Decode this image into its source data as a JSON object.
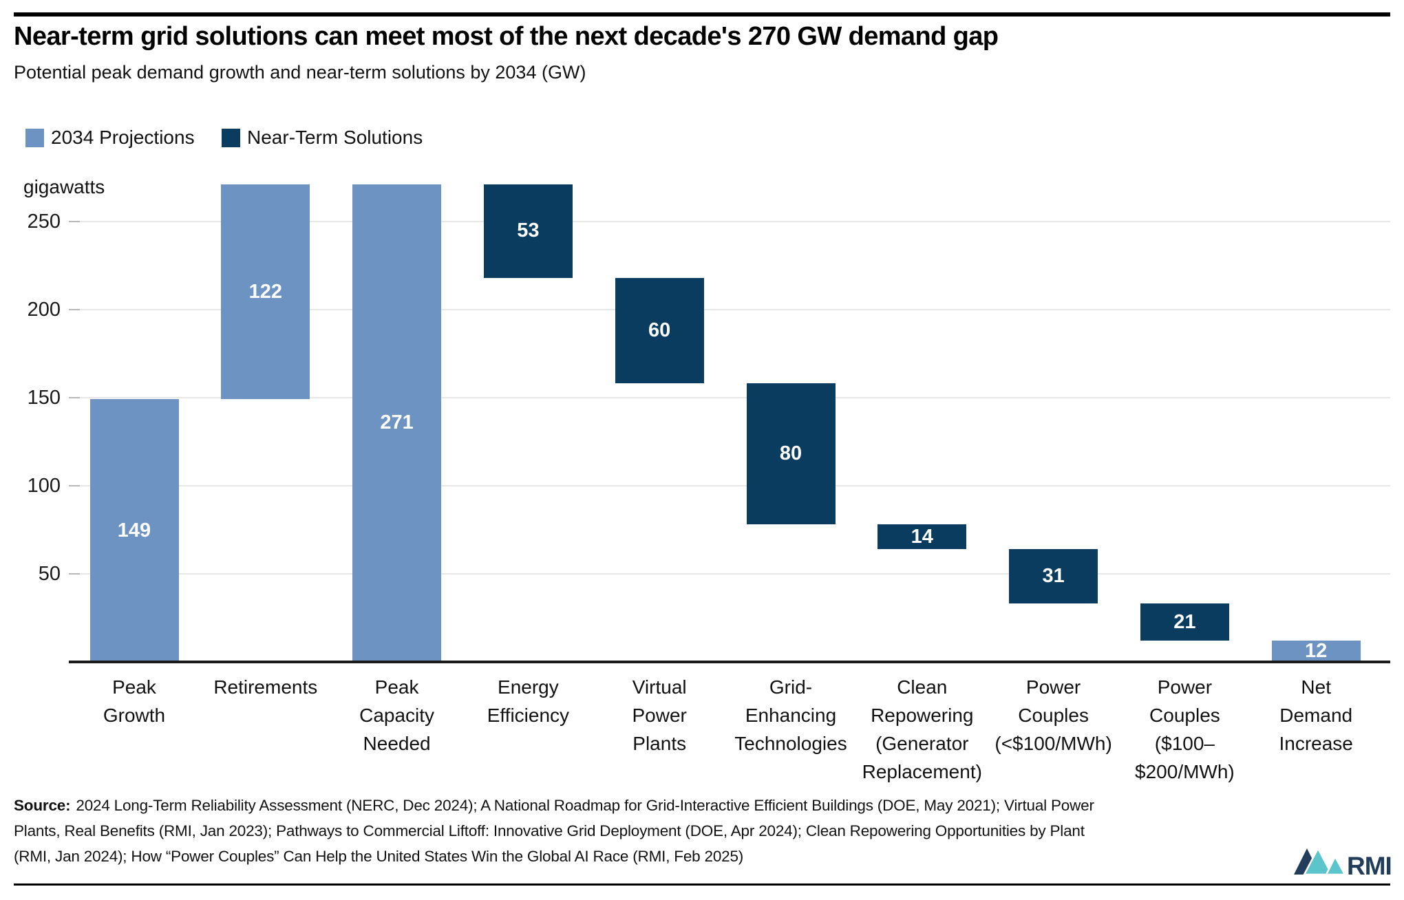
{
  "header": {
    "title": "Near-term grid solutions can meet most of the next decade's 270 GW demand gap",
    "subtitle": "Potential peak demand growth and near-term solutions by 2034 (GW)"
  },
  "legend": {
    "items": [
      {
        "label": "2034 Projections",
        "color": "#6d93c3"
      },
      {
        "label": "Near-Term Solutions",
        "color": "#0a3c60"
      }
    ]
  },
  "chart_data": {
    "type": "waterfall",
    "unit_label": "gigawatts",
    "ylabel": "gigawatts",
    "ylim": [
      0,
      271
    ],
    "yticks": [
      50,
      100,
      150,
      200,
      250
    ],
    "grid": true,
    "legend_position": "top-left",
    "series_colors": {
      "2034 Projections": "#6d93c3",
      "Near-Term Solutions": "#0a3c60"
    },
    "categories": [
      "Peak Growth",
      "Retirements",
      "Peak Capacity Needed",
      "Energy Efficiency",
      "Virtual Power Plants",
      "Grid-Enhancing Technologies",
      "Clean Repowering (Generator Replacement)",
      "Power Couples (<$100/MWh)",
      "Power Couples ($100–$200/MWh)",
      "Net Demand Increase"
    ],
    "bars": [
      {
        "category": "Peak Growth",
        "tick_lines": [
          "Peak",
          "Growth"
        ],
        "value": 149,
        "base": 0,
        "top": 271,
        "segment_top": 149,
        "series": "2034 Projections"
      },
      {
        "category": "Retirements",
        "tick_lines": [
          "Retirements"
        ],
        "value": 122,
        "base": 149,
        "top": 271,
        "segment_top": 271,
        "series": "2034 Projections"
      },
      {
        "category": "Peak Capacity Needed",
        "tick_lines": [
          "Peak",
          "Capacity",
          "Needed"
        ],
        "value": 271,
        "base": 0,
        "top": 271,
        "segment_top": 271,
        "series": "2034 Projections"
      },
      {
        "category": "Energy Efficiency",
        "tick_lines": [
          "Energy",
          "Efficiency"
        ],
        "value": 53,
        "base": 218,
        "top": 271,
        "segment_top": 271,
        "series": "Near-Term Solutions"
      },
      {
        "category": "Virtual Power Plants",
        "tick_lines": [
          "Virtual",
          "Power",
          "Plants"
        ],
        "value": 60,
        "base": 158,
        "top": 218,
        "segment_top": 218,
        "series": "Near-Term Solutions"
      },
      {
        "category": "Grid-Enhancing Technologies",
        "tick_lines": [
          "Grid-",
          "Enhancing",
          "Technologies"
        ],
        "value": 80,
        "base": 78,
        "top": 158,
        "segment_top": 158,
        "series": "Near-Term Solutions"
      },
      {
        "category": "Clean Repowering (Generator Replacement)",
        "tick_lines": [
          "Clean",
          "Repowering",
          "(Generator",
          "Replacement)"
        ],
        "value": 14,
        "base": 64,
        "top": 78,
        "segment_top": 78,
        "series": "Near-Term Solutions"
      },
      {
        "category": "Power Couples (<$100/MWh)",
        "tick_lines": [
          "Power",
          "Couples",
          "(<$100/MWh)"
        ],
        "value": 31,
        "base": 33,
        "top": 64,
        "segment_top": 64,
        "series": "Near-Term Solutions"
      },
      {
        "category": "Power Couples ($100–$200/MWh)",
        "tick_lines": [
          "Power",
          "Couples",
          "($100–",
          "$200/MWh)"
        ],
        "value": 21,
        "base": 12,
        "top": 33,
        "segment_top": 33,
        "series": "Near-Term Solutions"
      },
      {
        "category": "Net Demand Increase",
        "tick_lines": [
          "Net",
          "Demand",
          "Increase"
        ],
        "value": 12,
        "base": 0,
        "top": 12,
        "segment_top": 12,
        "series": "2034 Projections"
      }
    ]
  },
  "source": {
    "prefix": "Source:",
    "lines": [
      "2024 Long-Term Reliability Assessment (NERC, Dec 2024); A National Roadmap for Grid-Interactive Efficient Buildings (DOE, May 2021); Virtual Power",
      "Plants, Real Benefits (RMI, Jan 2023); Pathways to Commercial Liftoff: Innovative Grid Deployment (DOE, Apr 2024); Clean Repowering Opportunities by Plant",
      "(RMI, Jan 2024); How “Power Couples” Can Help the United States Win the Global AI Race (RMI, Feb 2025)"
    ]
  },
  "logo": {
    "text": "RMI",
    "navy": "#223c5c",
    "teal": "#5cc5cc"
  }
}
